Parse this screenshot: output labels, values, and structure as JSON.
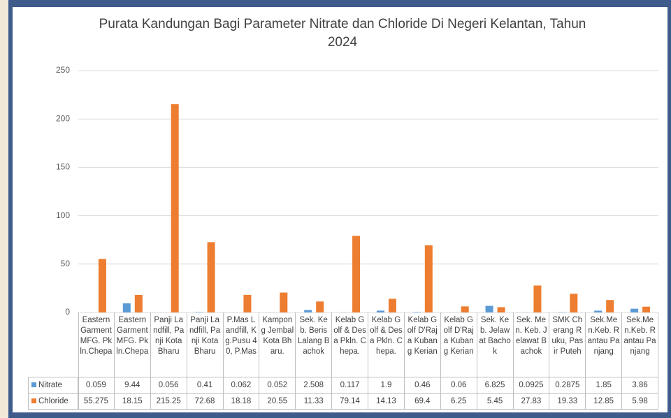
{
  "chart_data": {
    "type": "bar",
    "title": "Purata Kandungan Bagi Parameter Nitrate dan Chloride Di Negeri Kelantan, Tahun 2024",
    "categories": [
      "Eastern Garment MFG. Pkln.Chepa",
      "Eastern Garment MFG. Pkln.Chepa",
      "Panji Landfill, Panji Kota Bharu",
      "Panji Landfill, Panji Kota Bharu",
      "P.Mas Landfill, Kg.Pusu 40, P.Mas",
      "Kampong Jembal Kota Bharu.",
      "Sek. Keb. Beris Lalang Bachok",
      "Kelab Golf & Desa Pkln. Chepa.",
      "Kelab Golf & Desa Pkln. Chepa.",
      "Kelab Golf D'Raja Kubang Kerian",
      "Kelab Golf D'Raja Kubang Kerian",
      "Sek. Keb. Jelawat Bachok",
      "Sek. Men. Keb. Jelawat Bachok",
      "SMK Cherang Ruku, Pasir Puteh",
      "Sek.Men.Keb. Rantau Panjang",
      "Sek.Men.Keb. Rantau Panjang"
    ],
    "series": [
      {
        "name": "Nitrate",
        "color": "#5b9bd5",
        "values": [
          0.059,
          9.44,
          0.056,
          0.41,
          0.062,
          0.052,
          2.508,
          0.117,
          1.9,
          0.46,
          0.06,
          6.825,
          0.0925,
          0.2875,
          1.85,
          3.86
        ]
      },
      {
        "name": "Chloride",
        "color": "#ed7d31",
        "values": [
          55.275,
          18.15,
          215.25,
          72.68,
          18.18,
          20.55,
          11.33,
          79.14,
          14.13,
          69.4,
          6.25,
          5.45,
          27.83,
          19.33,
          12.85,
          5.98
        ]
      }
    ],
    "ylim": [
      0,
      250
    ],
    "yticks": [
      0,
      50,
      100,
      150,
      200,
      250
    ],
    "grid": true
  }
}
